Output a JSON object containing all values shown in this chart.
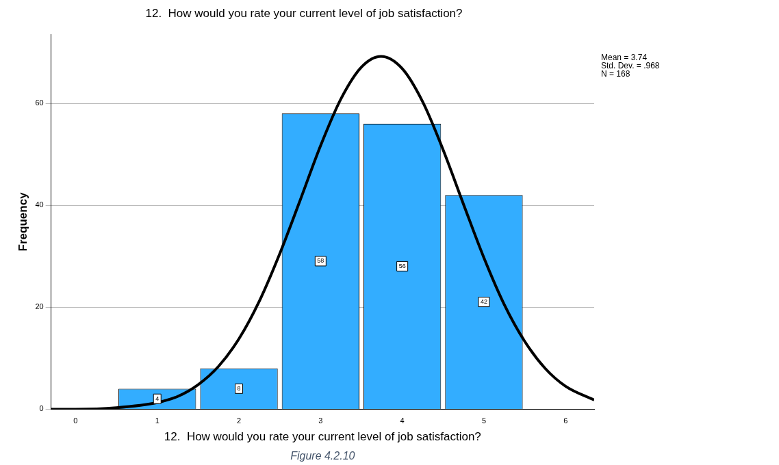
{
  "chart_data": {
    "type": "histogram",
    "title": "12.  How would you rate your current level of job satisfaction?",
    "xlabel": "12.  How would you rate your current level of job satisfaction?",
    "ylabel": "Frequency",
    "bins": [
      0.5,
      1.5,
      2.5,
      3.5,
      4.5,
      5.5
    ],
    "values": [
      4,
      8,
      58,
      56,
      42
    ],
    "value_labels": [
      "4",
      "8",
      "58",
      "56",
      "42"
    ],
    "color": "#33adff",
    "series": [
      {
        "type": "line",
        "color": "#000000",
        "x": [
          -0.3,
          0,
          0.5,
          1,
          1.25,
          1.5,
          1.75,
          2,
          2.25,
          2.5,
          2.75,
          3,
          3.25,
          3.5,
          3.74,
          4,
          4.25,
          4.5,
          4.75,
          5,
          5.25,
          5.5,
          5.75,
          6,
          6.35
        ],
        "values": [
          0,
          0,
          0.3,
          1.3,
          2.5,
          4.8,
          8.4,
          13.8,
          21.2,
          30.5,
          41.0,
          51.7,
          60.9,
          67.1,
          69.2,
          66.8,
          60.3,
          50.9,
          40.2,
          29.7,
          20.5,
          13.3,
          8.0,
          4.5,
          1.8
        ]
      }
    ],
    "xlim": [
      -0.3,
      6.35
    ],
    "xticks": [
      0,
      1,
      2,
      3,
      4,
      5,
      6
    ],
    "ylim": [
      0,
      73.5
    ],
    "yticks": [
      0,
      20,
      40,
      60
    ],
    "grid": "y",
    "legend": false,
    "marker": "none",
    "annotations": [
      "Mean = 3.74",
      "Std. Dev. = .968",
      "N = 168",
      "Figure 4.2.10"
    ]
  }
}
